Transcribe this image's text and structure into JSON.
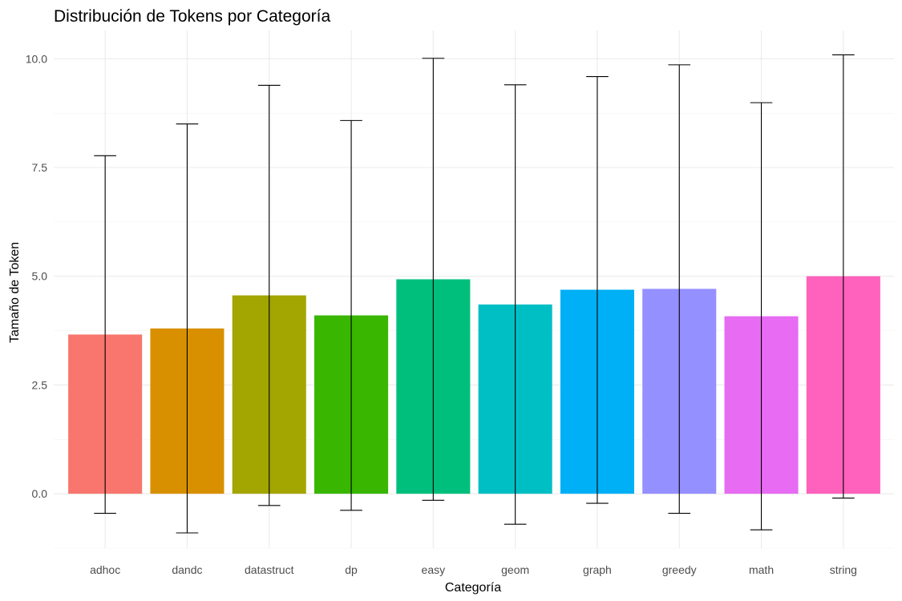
{
  "chart_data": {
    "type": "bar",
    "title": "Distribución de Tokens por Categoría",
    "xlabel": "Categoría",
    "ylabel": "Tamaño de Token",
    "ylim": [
      -1.25,
      10.65
    ],
    "yticks": [
      0,
      2.5,
      5,
      7.5,
      10
    ],
    "ytick_labels": [
      "0.0",
      "2.5",
      "5.0",
      "7.5",
      "10.0"
    ],
    "grid": true,
    "legend": "none",
    "categories": [
      "adhoc",
      "dandc",
      "datastruct",
      "dp",
      "easy",
      "geom",
      "graph",
      "greedy",
      "math",
      "string"
    ],
    "values": [
      3.66,
      3.8,
      4.56,
      4.1,
      4.93,
      4.35,
      4.69,
      4.71,
      4.08,
      5.0
    ],
    "error_lower": [
      -0.45,
      -0.9,
      -0.27,
      -0.38,
      -0.15,
      -0.7,
      -0.22,
      -0.45,
      -0.83,
      -0.1
    ],
    "error_upper": [
      7.77,
      8.5,
      9.39,
      8.58,
      10.01,
      9.4,
      9.59,
      9.86,
      8.99,
      10.09
    ],
    "colors": [
      "#F8766D",
      "#D89000",
      "#A3A500",
      "#39B600",
      "#00BF7D",
      "#00BFC4",
      "#00B0F6",
      "#9590FF",
      "#E76BF3",
      "#FF62BC"
    ]
  }
}
